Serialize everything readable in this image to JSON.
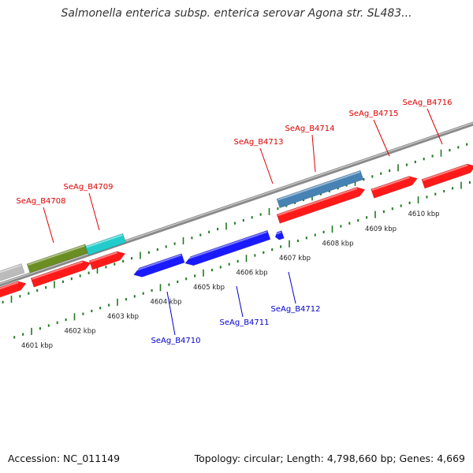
{
  "title": "Salmonella enterica subsp. enterica serovar Agona str. SL483...",
  "footer": {
    "accession": "Accession: NC_011149",
    "summary": "Topology: circular; Length: 4,798,660 bp; Genes: 4,669"
  },
  "colors": {
    "backbone": "#8a8a8a",
    "tick": "#1f7a1f",
    "forward_label": "#dd0000",
    "reverse_label": "#0000cc",
    "red_gene": "#ff1a1a",
    "blue_gene": "#1a1aff",
    "gray_gene": "#bbbbbb",
    "olive_gene": "#6b8e23",
    "cyan_gene": "#22cccc",
    "steel_gene": "#4682b4"
  },
  "scale_labels": [
    "4601 kbp",
    "4602 kbp",
    "4603 kbp",
    "4604 kbp",
    "4605 kbp",
    "4606 kbp",
    "4607 kbp",
    "4608 kbp",
    "4609 kbp",
    "4610 kbp"
  ],
  "forward_gene_labels": [
    "SeAg_B4708",
    "SeAg_B4709",
    "SeAg_B4713",
    "SeAg_B4714",
    "SeAg_B4715",
    "SeAg_B4716"
  ],
  "reverse_gene_labels": [
    "SeAg_B4710",
    "SeAg_B4711",
    "SeAg_B4712"
  ]
}
